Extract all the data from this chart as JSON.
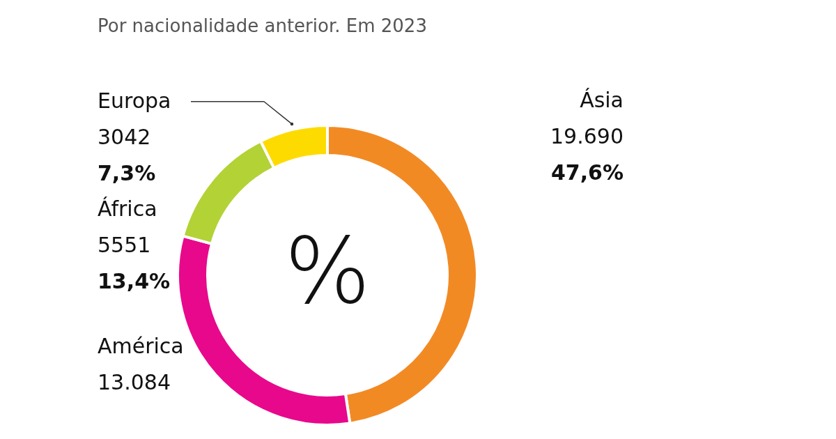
{
  "chart_data": {
    "type": "donut",
    "subtitle": "Por nacionalidade anterior. Em 2023",
    "categories": [
      "Ásia",
      "América",
      "África",
      "Europa"
    ],
    "values": [
      19690,
      13084,
      5551,
      3042
    ],
    "value_labels": [
      "19.690",
      "13.084",
      "5551",
      "3042"
    ],
    "colors": [
      "#f28a24",
      "#e8088c",
      "#b3d235",
      "#fddb00"
    ],
    "annotations": [
      {
        "text": "47,6%",
        "x": "Ásia"
      },
      {
        "text": "13,4%",
        "x": "África"
      },
      {
        "text": "7,3%",
        "x": "Europa"
      },
      "%"
    ],
    "legend": false
  }
}
